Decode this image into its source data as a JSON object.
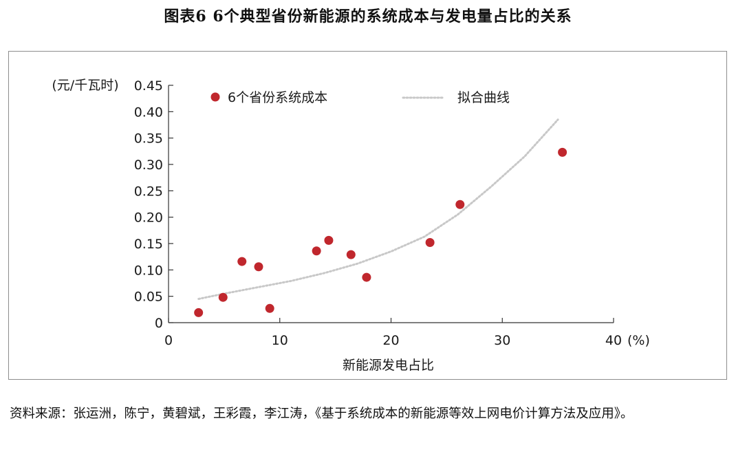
{
  "figure": {
    "title": "图表6  6个典型省份新能源的系统成本与发电量占比的关系",
    "source": "资料来源：张运洲，陈宁，黄碧斌，王彩霞，李江涛，《基于系统成本的新能源等效上网电价计算方法及应用》。"
  },
  "chart_data": {
    "type": "scatter",
    "xlabel": "新能源发电占比",
    "xunit": "(%)",
    "ylabel": "(元/千瓦时)",
    "xlim": [
      0,
      40
    ],
    "ylim": [
      0,
      0.45
    ],
    "xticks": [
      0,
      10,
      20,
      30,
      40
    ],
    "xtick_labels": [
      "0",
      "10",
      "20",
      "30",
      "40"
    ],
    "yticks": [
      0,
      0.05,
      0.1,
      0.15,
      0.2,
      0.25,
      0.3,
      0.35,
      0.4,
      0.45
    ],
    "ytick_labels": [
      "0",
      "0.05",
      "0.10",
      "0.15",
      "0.20",
      "0.25",
      "0.30",
      "0.35",
      "0.40",
      "0.45"
    ],
    "grid": false,
    "legend_position": "top",
    "series": [
      {
        "name": "6个省份系统成本",
        "kind": "scatter",
        "color": "#c0272d",
        "x": [
          2.7,
          4.9,
          6.6,
          8.1,
          9.1,
          13.3,
          14.4,
          16.4,
          17.8,
          23.5,
          26.2,
          35.4
        ],
        "y": [
          0.019,
          0.048,
          0.116,
          0.106,
          0.027,
          0.136,
          0.156,
          0.129,
          0.086,
          0.152,
          0.224,
          0.323
        ]
      },
      {
        "name": "拟合曲线",
        "kind": "line",
        "style": "dotted",
        "color": "#c8c8c8",
        "x": [
          2.7,
          5,
          8,
          11,
          14,
          17,
          20,
          23,
          26,
          29,
          32,
          35
        ],
        "y": [
          0.045,
          0.055,
          0.067,
          0.079,
          0.094,
          0.112,
          0.135,
          0.163,
          0.205,
          0.258,
          0.315,
          0.385
        ]
      }
    ]
  }
}
